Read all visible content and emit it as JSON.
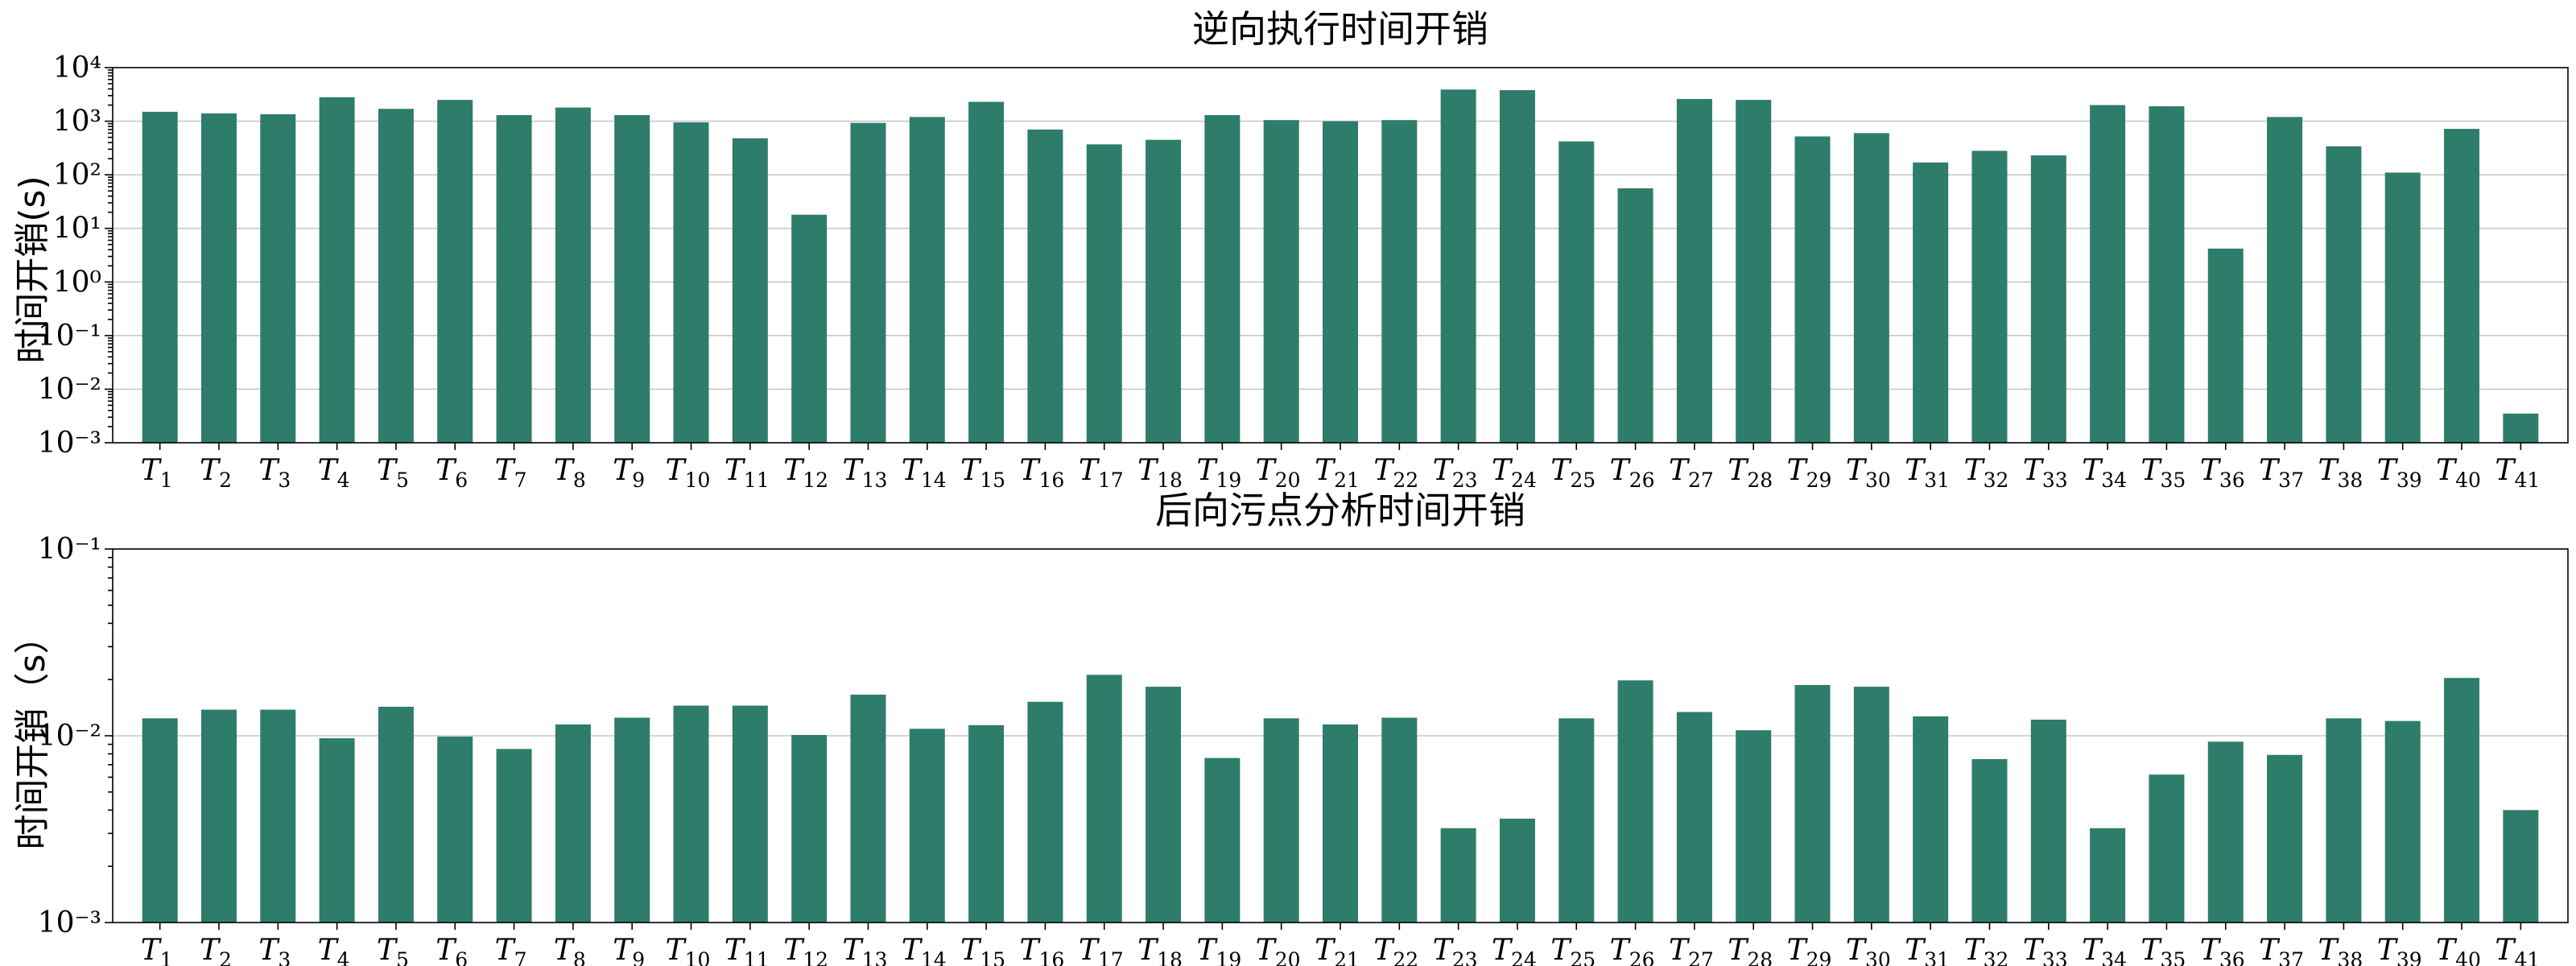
{
  "colors": {
    "bar": "#2e7d6b"
  },
  "chart_data": [
    {
      "type": "bar",
      "title": "逆向执行时间开销",
      "ylabel": "时间开销(s)",
      "yscale": "log",
      "ylim": [
        0.001,
        10000
      ],
      "yticks": [
        "10⁻³",
        "10⁻²",
        "10⁻¹",
        "10⁰",
        "10¹",
        "10²",
        "10³",
        "10⁴"
      ],
      "grid": true,
      "categories": [
        "T1",
        "T2",
        "T3",
        "T4",
        "T5",
        "T6",
        "T7",
        "T8",
        "T9",
        "T10",
        "T11",
        "T12",
        "T13",
        "T14",
        "T15",
        "T16",
        "T17",
        "T18",
        "T19",
        "T20",
        "T21",
        "T22",
        "T23",
        "T24",
        "T25",
        "T26",
        "T27",
        "T28",
        "T29",
        "T30",
        "T31",
        "T32",
        "T33",
        "T34",
        "T35",
        "T36",
        "T37",
        "T38",
        "T39",
        "T40",
        "T41"
      ],
      "values": [
        1500,
        1400,
        1350,
        2800,
        1700,
        2500,
        1300,
        1800,
        1300,
        950,
        480,
        18,
        930,
        1200,
        2300,
        700,
        370,
        450,
        1300,
        1050,
        1000,
        1050,
        3900,
        3800,
        420,
        56,
        2600,
        2500,
        520,
        600,
        170,
        280,
        230,
        2000,
        1900,
        4.2,
        1200,
        340,
        110,
        720,
        0.0035
      ]
    },
    {
      "type": "bar",
      "title": "后向污点分析时间开销",
      "ylabel": "时间开销（s）",
      "yscale": "log",
      "ylim": [
        0.001,
        0.1
      ],
      "yticks": [
        "10⁻³",
        "10⁻²",
        "10⁻¹"
      ],
      "grid": true,
      "categories": [
        "T1",
        "T2",
        "T3",
        "T4",
        "T5",
        "T6",
        "T7",
        "T8",
        "T9",
        "T10",
        "T11",
        "T12",
        "T13",
        "T14",
        "T15",
        "T16",
        "T17",
        "T18",
        "T19",
        "T20",
        "T21",
        "T22",
        "T23",
        "T24",
        "T25",
        "T26",
        "T27",
        "T28",
        "T29",
        "T30",
        "T31",
        "T32",
        "T33",
        "T34",
        "T35",
        "T36",
        "T37",
        "T38",
        "T39",
        "T40",
        "T41"
      ],
      "values": [
        0.0124,
        0.0138,
        0.0138,
        0.0097,
        0.0143,
        0.0099,
        0.0085,
        0.0115,
        0.0125,
        0.0145,
        0.0145,
        0.0101,
        0.0166,
        0.0109,
        0.0114,
        0.0152,
        0.0212,
        0.0183,
        0.0076,
        0.0124,
        0.0115,
        0.0125,
        0.0032,
        0.0036,
        0.0124,
        0.0198,
        0.0134,
        0.0107,
        0.0187,
        0.0183,
        0.0127,
        0.0075,
        0.0122,
        0.0032,
        0.0062,
        0.0093,
        0.0079,
        0.0124,
        0.012,
        0.0204,
        0.004
      ]
    }
  ]
}
